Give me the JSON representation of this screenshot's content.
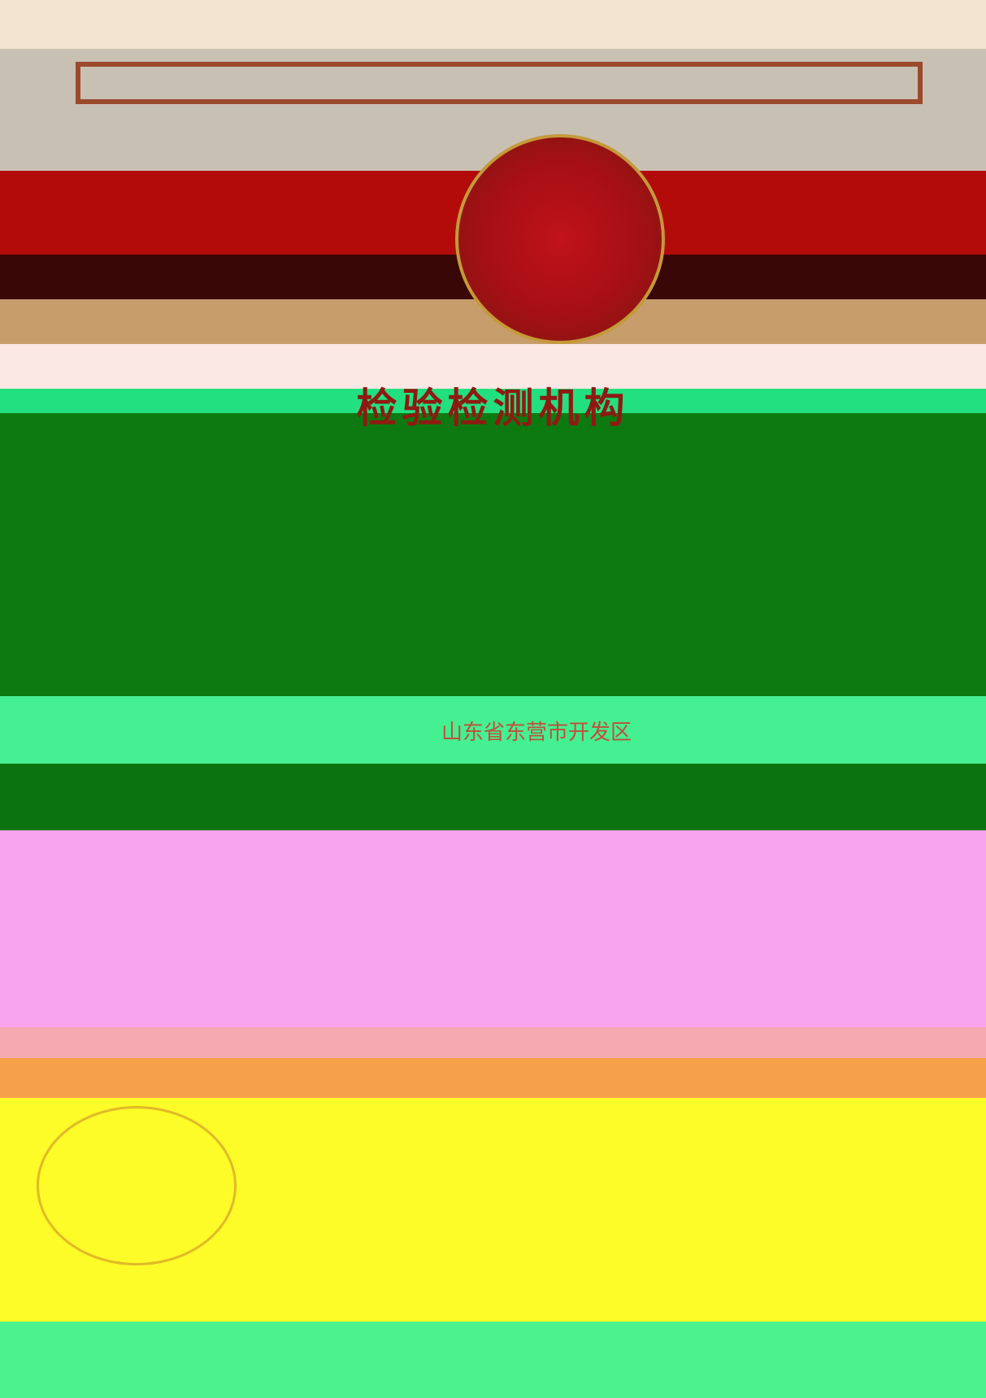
{
  "title": "检验检测机构",
  "address": "山东省东营市开发区"
}
